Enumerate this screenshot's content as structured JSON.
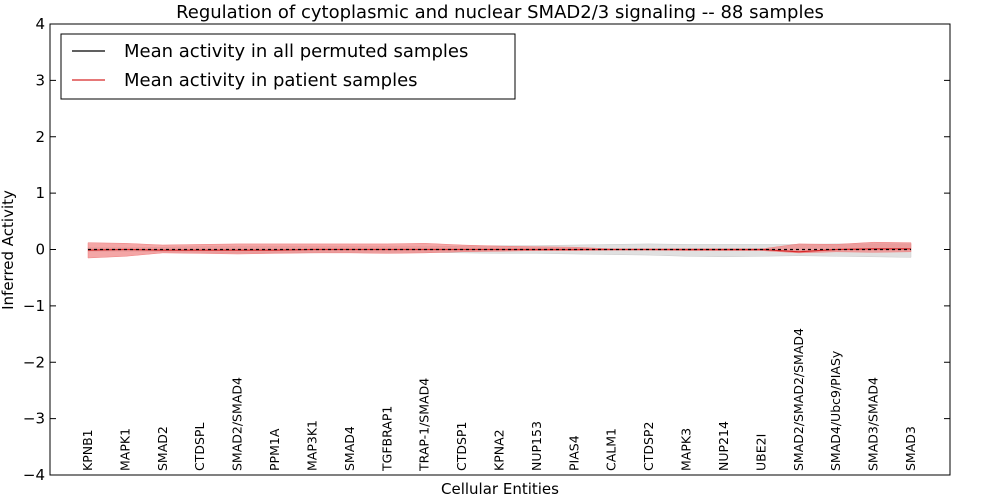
{
  "chart_data": {
    "type": "line",
    "title": "Regulation of cytoplasmic and nuclear SMAD2/3 signaling -- 88 samples",
    "xlabel": "Cellular Entities",
    "ylabel": "Inferred Activity",
    "ylim": [
      -4,
      4
    ],
    "yticks": [
      4,
      3,
      2,
      1,
      0,
      -1,
      -2,
      -3,
      -4
    ],
    "ytick_labels": [
      "4",
      "3",
      "2",
      "1",
      "0",
      "−1",
      "−2",
      "−3",
      "−4"
    ],
    "categories": [
      "KPNB1",
      "MAPK1",
      "SMAD2",
      "CTDSPL",
      "SMAD2/SMAD4",
      "PPM1A",
      "MAP3K1",
      "SMAD4",
      "TGFBRAP1",
      "TRAP-1/SMAD4",
      "CTDSP1",
      "KPNA2",
      "NUP153",
      "PIAS4",
      "CALM1",
      "CTDSP2",
      "MAPK3",
      "NUP214",
      "UBE2I",
      "SMAD2/SMAD2/SMAD4",
      "SMAD4/Ubc9/PIASy",
      "SMAD3/SMAD4",
      "SMAD3"
    ],
    "legend_position": "top-left",
    "grid": false,
    "series": [
      {
        "name": "Mean activity in all permuted samples",
        "color": "#000000",
        "values": [
          0.0,
          0.0,
          0.0,
          0.0,
          0.0,
          0.0,
          0.0,
          0.0,
          0.0,
          0.0,
          0.0,
          0.0,
          0.0,
          0.0,
          0.0,
          0.0,
          0.0,
          0.0,
          0.0,
          0.0,
          0.0,
          0.0,
          0.0
        ],
        "band_upper": [
          0.03,
          0.03,
          0.04,
          0.05,
          0.05,
          0.05,
          0.05,
          0.05,
          0.05,
          0.05,
          0.06,
          0.07,
          0.07,
          0.08,
          0.09,
          0.1,
          0.09,
          0.09,
          0.09,
          0.09,
          0.1,
          0.1,
          0.1
        ],
        "band_lower": [
          -0.03,
          -0.03,
          -0.04,
          -0.05,
          -0.06,
          -0.06,
          -0.06,
          -0.05,
          -0.05,
          -0.05,
          -0.06,
          -0.07,
          -0.07,
          -0.08,
          -0.09,
          -0.1,
          -0.12,
          -0.13,
          -0.12,
          -0.11,
          -0.12,
          -0.13,
          -0.14
        ],
        "band_color": "#cccccc"
      },
      {
        "name": "Mean activity in patient samples",
        "color": "#d62728",
        "values": [
          -0.01,
          0.0,
          -0.01,
          -0.01,
          -0.01,
          -0.01,
          0.0,
          0.0,
          0.0,
          0.0,
          0.0,
          0.0,
          0.0,
          0.0,
          0.0,
          0.0,
          0.0,
          0.0,
          0.0,
          -0.04,
          0.0,
          0.01,
          0.01
        ],
        "band_upper": [
          0.12,
          0.11,
          0.08,
          0.09,
          0.1,
          0.1,
          0.1,
          0.1,
          0.1,
          0.11,
          0.08,
          0.06,
          0.05,
          0.04,
          0.01,
          0.01,
          0.01,
          0.01,
          0.01,
          0.1,
          0.09,
          0.13,
          0.12
        ],
        "band_lower": [
          -0.15,
          -0.12,
          -0.06,
          -0.07,
          -0.08,
          -0.07,
          -0.06,
          -0.06,
          -0.07,
          -0.06,
          -0.04,
          -0.03,
          -0.02,
          -0.02,
          -0.01,
          -0.01,
          -0.02,
          -0.02,
          -0.02,
          -0.06,
          -0.04,
          -0.05,
          -0.04
        ],
        "band_color": "#f08080"
      }
    ]
  }
}
